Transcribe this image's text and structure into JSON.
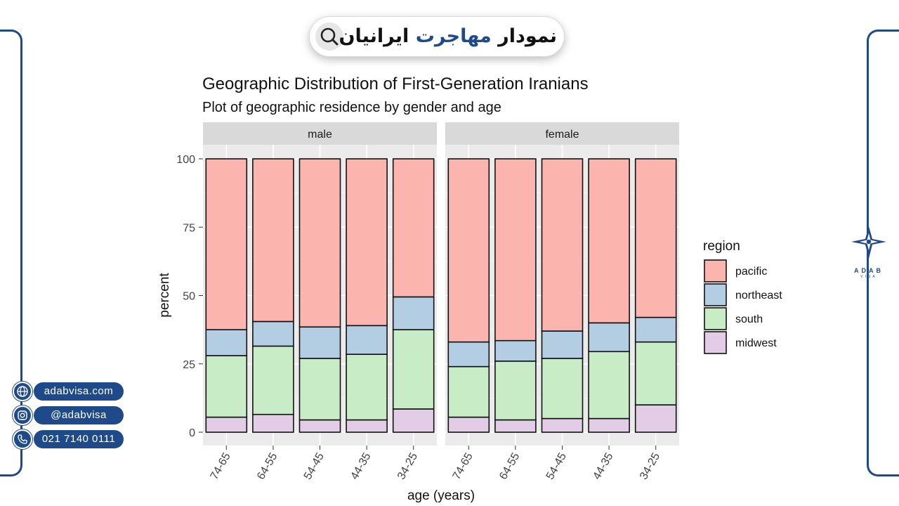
{
  "header": {
    "search_text_part1": "نمودار ",
    "search_text_accent": "مهاجرت",
    "search_text_part2": " ایرانیان",
    "search_icon": "search-icon",
    "accent_color": "#1f4a8a"
  },
  "contacts": [
    {
      "icon": "globe-icon",
      "label": "adabvisa.com"
    },
    {
      "icon": "instagram-icon",
      "label": "@adabvisa"
    },
    {
      "icon": "phone-icon",
      "label": "021 7140 0111"
    }
  ],
  "logo": {
    "icon": "compass-star-icon",
    "name": "ADAB",
    "sub": "VISA"
  },
  "chart_data": {
    "type": "bar",
    "stacked": true,
    "title": "Geographic Distribution of First-Generation Iranians",
    "subtitle": "Plot of geographic residence by gender and age",
    "xlabel": "age (years)",
    "ylabel": "percent",
    "ylim": [
      0,
      100
    ],
    "yticks": [
      0,
      25,
      50,
      75,
      100
    ],
    "grid": true,
    "legend_title": "region",
    "legend_position": "right",
    "categories": [
      "74-65",
      "64-55",
      "54-45",
      "44-35",
      "34-25"
    ],
    "series_colors": {
      "midwest": "#e2cce6",
      "south": "#c8ecc5",
      "northeast": "#b3cde3",
      "pacific": "#fbb4ae"
    },
    "legend": [
      "pacific",
      "northeast",
      "south",
      "midwest"
    ],
    "panels": [
      {
        "label": "male",
        "series": [
          {
            "name": "midwest",
            "values": [
              5.5,
              6.5,
              4.5,
              4.5,
              8.5
            ]
          },
          {
            "name": "south",
            "values": [
              22.5,
              25,
              22.5,
              24,
              29
            ]
          },
          {
            "name": "northeast",
            "values": [
              9.5,
              9,
              11.5,
              10.5,
              12
            ]
          },
          {
            "name": "pacific",
            "values": [
              62.5,
              59.5,
              61.5,
              61,
              50.5
            ]
          }
        ]
      },
      {
        "label": "female",
        "series": [
          {
            "name": "midwest",
            "values": [
              5.5,
              4.5,
              5,
              5,
              10
            ]
          },
          {
            "name": "south",
            "values": [
              18.5,
              21.5,
              22,
              24.5,
              23
            ]
          },
          {
            "name": "northeast",
            "values": [
              9,
              7.5,
              10,
              10.5,
              9
            ]
          },
          {
            "name": "pacific",
            "values": [
              67,
              66.5,
              63,
              60,
              58
            ]
          }
        ]
      }
    ]
  }
}
